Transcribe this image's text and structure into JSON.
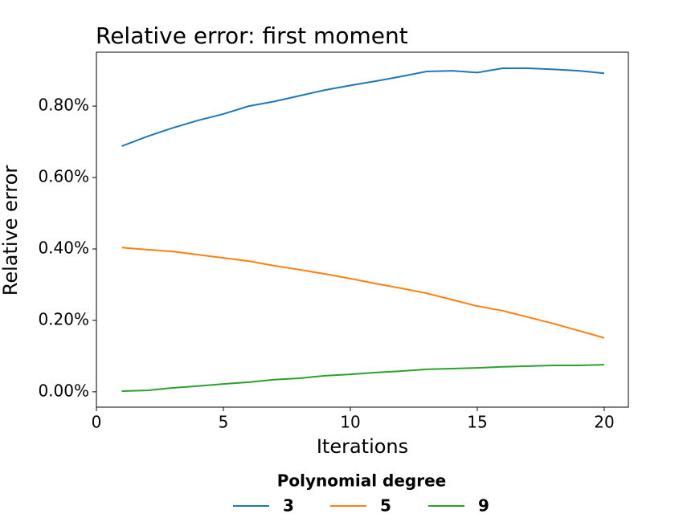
{
  "chart_data": {
    "type": "line",
    "title": "Relative error: first moment",
    "x_label": "Iterations",
    "y_label": "Relative error",
    "x": [
      1,
      2,
      3,
      4,
      5,
      6,
      7,
      8,
      9,
      10,
      11,
      12,
      13,
      14,
      15,
      16,
      17,
      18,
      19,
      20
    ],
    "series": [
      {
        "name": "3",
        "color": "#1f77b4",
        "values": [
          0.688,
          0.715,
          0.739,
          0.76,
          0.778,
          0.8,
          0.813,
          0.829,
          0.845,
          0.858,
          0.87,
          0.883,
          0.897,
          0.899,
          0.894,
          0.906,
          0.906,
          0.903,
          0.899,
          0.892
        ]
      },
      {
        "name": "5",
        "color": "#ff7f0e",
        "values": [
          0.404,
          0.398,
          0.393,
          0.384,
          0.375,
          0.366,
          0.353,
          0.342,
          0.33,
          0.317,
          0.303,
          0.29,
          0.276,
          0.258,
          0.24,
          0.227,
          0.209,
          0.191,
          0.171,
          0.151
        ]
      },
      {
        "name": "9",
        "color": "#2ca02c",
        "values": [
          0.002,
          0.004,
          0.011,
          0.016,
          0.022,
          0.027,
          0.034,
          0.038,
          0.045,
          0.049,
          0.054,
          0.058,
          0.063,
          0.065,
          0.067,
          0.07,
          0.072,
          0.074,
          0.074,
          0.076
        ]
      }
    ],
    "xlim": [
      0,
      20.95
    ],
    "xticks": [
      0,
      5,
      10,
      15,
      20
    ],
    "ylim": [
      -0.043,
      0.951
    ],
    "yticks": [
      {
        "value": 0,
        "label": "0.00%"
      },
      {
        "value": 0.2,
        "label": "0.20%"
      },
      {
        "value": 0.4,
        "label": "0.40%"
      },
      {
        "value": 0.6,
        "label": "0.60%"
      },
      {
        "value": 0.8,
        "label": "0.80%"
      }
    ],
    "grid": false,
    "legend_title": "Polynomial degree",
    "legend": "bottom"
  }
}
